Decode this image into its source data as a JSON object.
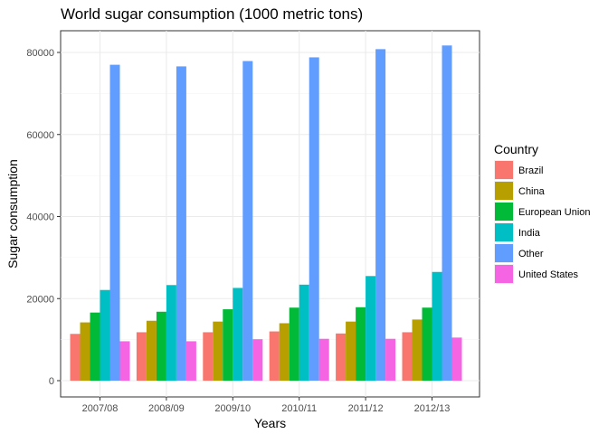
{
  "chart_data": {
    "type": "bar",
    "title": "World sugar consumption (1000 metric tons)",
    "xlabel": "Years",
    "ylabel": "Sugar consumption",
    "ylim": [
      0,
      85000
    ],
    "yticks": [
      0,
      20000,
      40000,
      60000,
      80000
    ],
    "grid": true,
    "legend_position": "right",
    "legend_title": "Country",
    "categories": [
      "2007/08",
      "2008/09",
      "2009/10",
      "2010/11",
      "2011/12",
      "2012/13"
    ],
    "series": [
      {
        "name": "Brazil",
        "color": "#F8766D",
        "values": [
          11400,
          11800,
          11800,
          12000,
          11500,
          11800
        ]
      },
      {
        "name": "China",
        "color": "#B79F00",
        "values": [
          14200,
          14600,
          14400,
          14000,
          14400,
          14900
        ]
      },
      {
        "name": "European Union",
        "color": "#00BA38",
        "values": [
          16600,
          16800,
          17400,
          17800,
          17900,
          17800
        ]
      },
      {
        "name": "India",
        "color": "#00BFC4",
        "values": [
          22100,
          23300,
          22600,
          23400,
          25500,
          26500
        ]
      },
      {
        "name": "Other",
        "color": "#619CFF",
        "values": [
          77000,
          76600,
          77900,
          78800,
          80800,
          81700
        ]
      },
      {
        "name": "United States",
        "color": "#F564E3",
        "values": [
          9600,
          9600,
          10100,
          10200,
          10200,
          10500
        ]
      }
    ]
  }
}
